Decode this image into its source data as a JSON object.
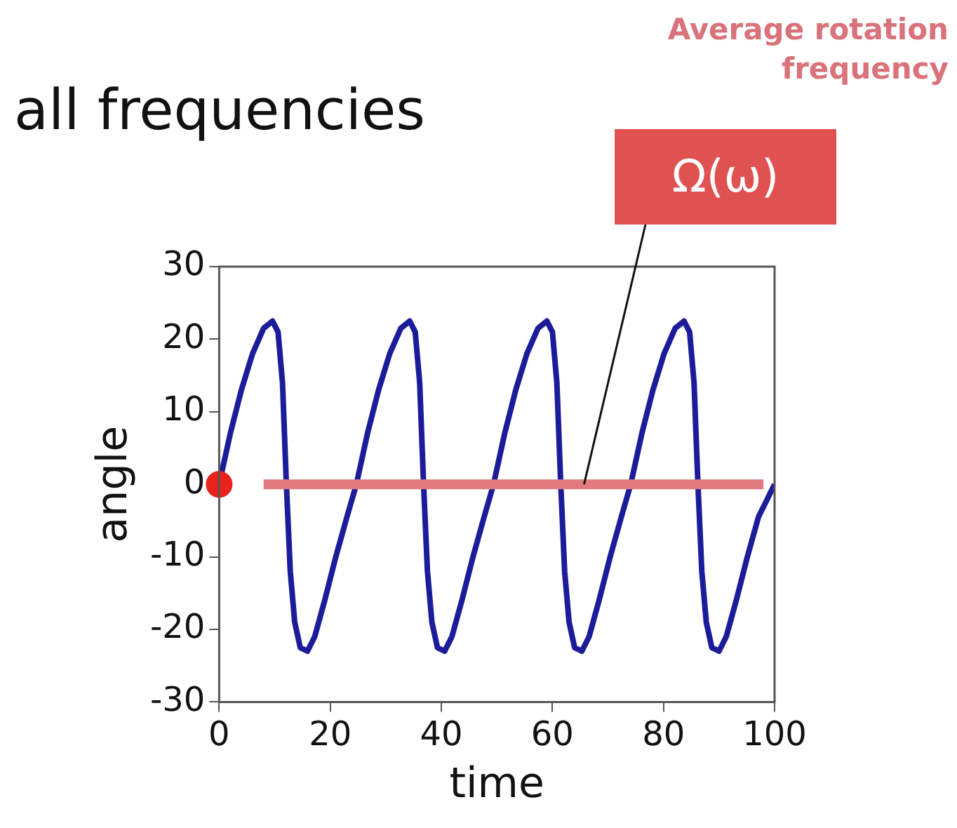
{
  "chart_data": {
    "type": "line",
    "title": "all frequencies",
    "xlabel": "time",
    "ylabel": "angle",
    "xlim": [
      0,
      100
    ],
    "xticks": [
      0,
      20,
      40,
      60,
      80,
      100
    ],
    "ylim": [
      -30,
      30
    ],
    "yticks": [
      -30,
      -20,
      -10,
      0,
      10,
      20,
      30
    ],
    "grid": false,
    "legend": false,
    "series": [
      {
        "color": "#1c1c9a",
        "marker": "none",
        "x": [
          0,
          2,
          4,
          6,
          8,
          9.6,
          10.6,
          11.4,
          12.1,
          12.8,
          13.6,
          14.6,
          15.9,
          17.2,
          19,
          21,
          23,
          24.7,
          26.7,
          28.7,
          30.7,
          32.7,
          34.3,
          35.3,
          36.1,
          36.8,
          37.5,
          38.3,
          39.3,
          40.6,
          41.9,
          43.7,
          45.7,
          47.7,
          49.4,
          51.4,
          53.4,
          55.4,
          57.4,
          59,
          60,
          60.8,
          61.5,
          62.2,
          63,
          64,
          65.3,
          66.6,
          68.4,
          70.4,
          72.4,
          74.1,
          76.1,
          78.1,
          80.1,
          82.1,
          83.7,
          84.7,
          85.5,
          86.2,
          86.9,
          87.7,
          88.7,
          90,
          91.3,
          93.1,
          95.1,
          97.1,
          100
        ],
        "values": [
          0,
          7,
          13,
          18,
          21.5,
          22.5,
          21,
          14,
          0,
          -12,
          -19,
          -22.5,
          -23,
          -21,
          -16,
          -10,
          -4.5,
          0,
          7,
          13,
          18,
          21.5,
          22.5,
          21,
          14,
          0,
          -12,
          -19,
          -22.5,
          -23,
          -21,
          -16,
          -10,
          -4.5,
          0,
          7,
          13,
          18,
          21.5,
          22.5,
          21,
          14,
          0,
          -12,
          -19,
          -22.5,
          -23,
          -21,
          -16,
          -10,
          -4.5,
          0,
          7,
          13,
          18,
          21.5,
          22.5,
          21,
          14,
          0,
          -12,
          -19,
          -22.5,
          -23,
          -21,
          -16,
          -10,
          -4.5,
          0
        ]
      },
      {
        "color": "#e07a7e",
        "marker": "none",
        "x": [
          8,
          98
        ],
        "values": [
          0,
          0
        ]
      },
      {
        "type": "scatter",
        "color": "#e8221c",
        "marker": "circle",
        "x": [
          0
        ],
        "values": [
          0
        ]
      }
    ],
    "annotations": [
      "Average rotation frequency",
      {
        "text": "Ω(ω)",
        "x": 65.7,
        "y": 0
      }
    ]
  }
}
